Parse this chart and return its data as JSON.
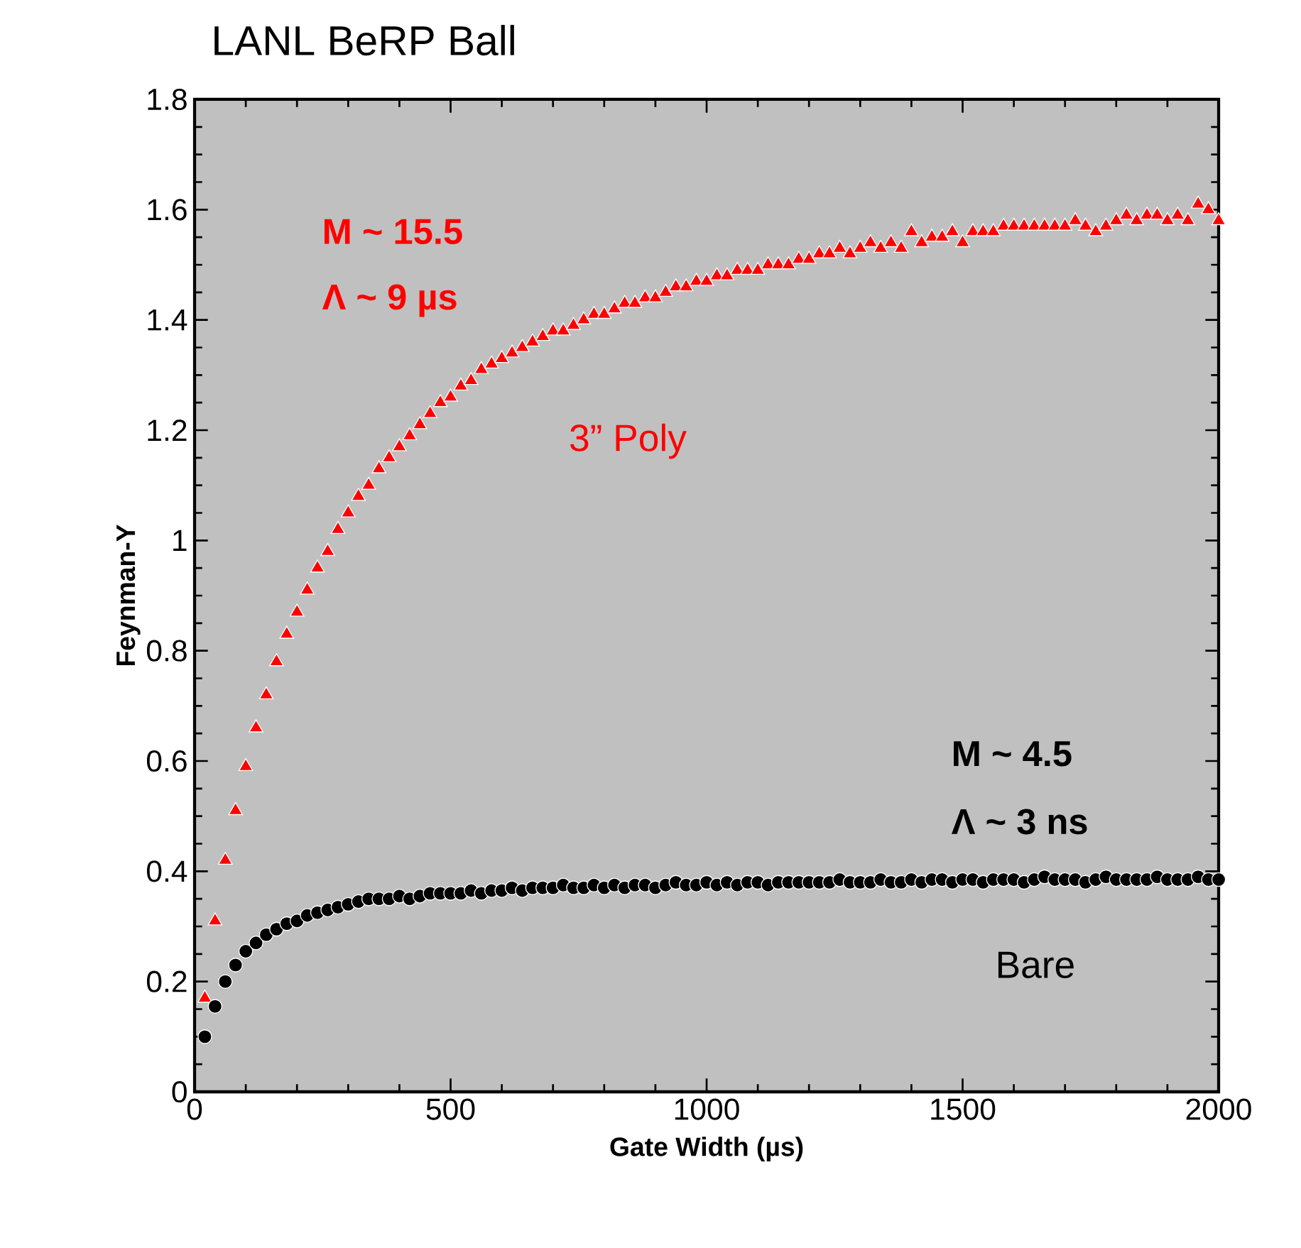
{
  "chart_data": {
    "type": "scatter",
    "title": "LANL BeRP Ball",
    "xlabel": "Gate Width (µs)",
    "ylabel": "Feynman-Y",
    "x": [
      20,
      40,
      60,
      80,
      100,
      120,
      140,
      160,
      180,
      200,
      220,
      240,
      260,
      280,
      300,
      320,
      340,
      360,
      380,
      400,
      420,
      440,
      460,
      480,
      500,
      520,
      540,
      560,
      580,
      600,
      620,
      640,
      660,
      680,
      700,
      720,
      740,
      760,
      780,
      800,
      820,
      840,
      860,
      880,
      900,
      920,
      940,
      960,
      980,
      1000,
      1020,
      1040,
      1060,
      1080,
      1100,
      1120,
      1140,
      1160,
      1180,
      1200,
      1220,
      1240,
      1260,
      1280,
      1300,
      1320,
      1340,
      1360,
      1380,
      1400,
      1420,
      1440,
      1460,
      1480,
      1500,
      1520,
      1540,
      1560,
      1580,
      1600,
      1620,
      1640,
      1660,
      1680,
      1700,
      1720,
      1740,
      1760,
      1780,
      1800,
      1820,
      1840,
      1860,
      1880,
      1900,
      1920,
      1940,
      1960,
      1980,
      2000
    ],
    "series": [
      {
        "name": "3” Poly",
        "color": "#ff0000",
        "marker": "triangle",
        "values": [
          0.17,
          0.31,
          0.42,
          0.51,
          0.59,
          0.66,
          0.72,
          0.78,
          0.83,
          0.87,
          0.91,
          0.95,
          0.98,
          1.02,
          1.05,
          1.08,
          1.1,
          1.13,
          1.15,
          1.17,
          1.19,
          1.21,
          1.23,
          1.25,
          1.26,
          1.28,
          1.29,
          1.31,
          1.32,
          1.33,
          1.34,
          1.35,
          1.36,
          1.37,
          1.38,
          1.38,
          1.39,
          1.4,
          1.41,
          1.41,
          1.42,
          1.43,
          1.43,
          1.44,
          1.44,
          1.45,
          1.46,
          1.46,
          1.47,
          1.47,
          1.48,
          1.48,
          1.49,
          1.49,
          1.49,
          1.5,
          1.5,
          1.5,
          1.51,
          1.51,
          1.52,
          1.52,
          1.53,
          1.52,
          1.53,
          1.54,
          1.53,
          1.54,
          1.53,
          1.56,
          1.54,
          1.55,
          1.55,
          1.56,
          1.54,
          1.56,
          1.56,
          1.56,
          1.57,
          1.57,
          1.57,
          1.57,
          1.57,
          1.57,
          1.57,
          1.58,
          1.57,
          1.56,
          1.57,
          1.58,
          1.59,
          1.58,
          1.59,
          1.59,
          1.58,
          1.59,
          1.58,
          1.61,
          1.6,
          1.58
        ]
      },
      {
        "name": "Bare",
        "color": "#000000",
        "marker": "circle",
        "values": [
          0.1,
          0.155,
          0.2,
          0.23,
          0.255,
          0.27,
          0.285,
          0.295,
          0.305,
          0.31,
          0.32,
          0.325,
          0.33,
          0.335,
          0.34,
          0.345,
          0.35,
          0.35,
          0.35,
          0.355,
          0.35,
          0.355,
          0.36,
          0.36,
          0.36,
          0.36,
          0.365,
          0.36,
          0.365,
          0.365,
          0.37,
          0.365,
          0.37,
          0.37,
          0.37,
          0.375,
          0.37,
          0.37,
          0.375,
          0.37,
          0.375,
          0.37,
          0.375,
          0.375,
          0.37,
          0.375,
          0.38,
          0.375,
          0.375,
          0.38,
          0.375,
          0.38,
          0.375,
          0.38,
          0.38,
          0.375,
          0.38,
          0.38,
          0.38,
          0.38,
          0.38,
          0.38,
          0.385,
          0.38,
          0.38,
          0.38,
          0.385,
          0.38,
          0.38,
          0.385,
          0.38,
          0.385,
          0.385,
          0.38,
          0.385,
          0.385,
          0.38,
          0.385,
          0.385,
          0.385,
          0.38,
          0.385,
          0.39,
          0.385,
          0.385,
          0.385,
          0.38,
          0.385,
          0.39,
          0.385,
          0.385,
          0.385,
          0.385,
          0.39,
          0.385,
          0.385,
          0.385,
          0.39,
          0.385,
          0.385
        ]
      }
    ],
    "annotations": [
      "M ~ 15.5",
      "Λ ~ 9 µs",
      "M ~ 4.5",
      "Λ ~ 3 ns"
    ],
    "xlim": [
      0,
      2000
    ],
    "ylim": [
      0,
      1.8
    ],
    "xticks": [
      0,
      500,
      1000,
      1500,
      2000
    ],
    "yticks": [
      0,
      0.2,
      0.4,
      0.6,
      0.8,
      1,
      1.2,
      1.4,
      1.6,
      1.8
    ]
  }
}
